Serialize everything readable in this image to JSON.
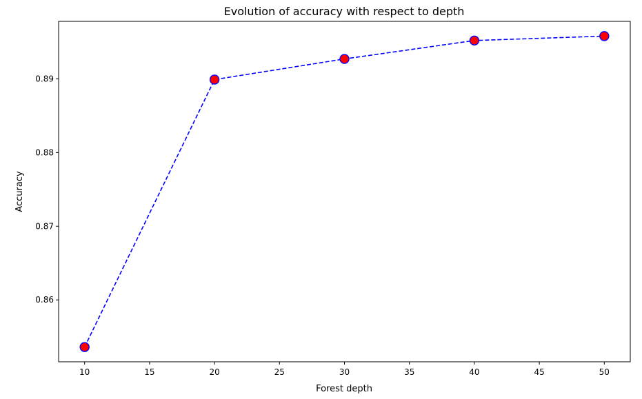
{
  "chart_data": {
    "type": "line",
    "title": "Evolution of accuracy with respect to depth",
    "xlabel": "Forest depth",
    "ylabel": "Accuracy",
    "x": [
      10,
      20,
      30,
      40,
      50
    ],
    "series": [
      {
        "values": [
          0.8536,
          0.8899,
          0.8927,
          0.8952,
          0.8958
        ],
        "line_color": "#0000ff",
        "line_style": "dashed",
        "marker": "circle",
        "marker_face_color": "#ff0000",
        "marker_edge_color": "#0000ff"
      }
    ],
    "xlim": [
      8.0,
      52.0
    ],
    "ylim": [
      0.8516,
      0.8978
    ],
    "x_ticks": [
      10,
      15,
      20,
      25,
      30,
      35,
      40,
      45,
      50
    ],
    "x_tick_labels": [
      "10",
      "15",
      "20",
      "25",
      "30",
      "35",
      "40",
      "45",
      "50"
    ],
    "y_ticks": [
      0.86,
      0.87,
      0.88,
      0.89
    ],
    "y_tick_labels": [
      "0.86",
      "0.87",
      "0.88",
      "0.89"
    ],
    "grid": false,
    "legend": "none"
  }
}
